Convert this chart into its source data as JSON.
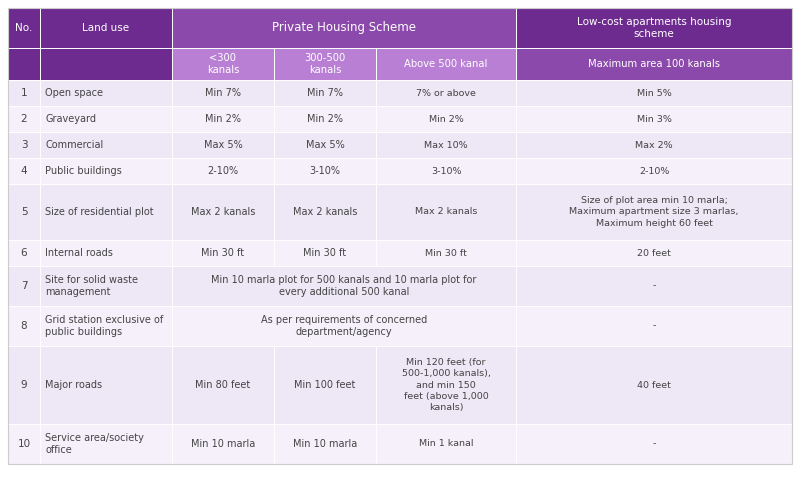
{
  "header_bg_dark": "#6d2b8f",
  "header_bg_medium": "#8b4aab",
  "header_bg_sub": "#b87fd4",
  "row_bg_odd": "#ede7f6",
  "row_bg_even": "#f5f0fa",
  "header_text_color": "#FFFFFF",
  "cell_text_color": "#444444",
  "border_color": "#FFFFFF",
  "rows": [
    [
      "1",
      "Open space",
      "Min 7%",
      "Min 7%",
      "7% or above",
      "Min 5%"
    ],
    [
      "2",
      "Graveyard",
      "Min 2%",
      "Min 2%",
      "Min 2%",
      "Min 3%"
    ],
    [
      "3",
      "Commercial",
      "Max 5%",
      "Max 5%",
      "Max 10%",
      "Max 2%"
    ],
    [
      "4",
      "Public buildings",
      "2-10%",
      "3-10%",
      "3-10%",
      "2-10%"
    ],
    [
      "5",
      "Size of residential plot",
      "Max 2 kanals",
      "Max 2 kanals",
      "Max 2 kanals",
      "Size of plot area min 10 marla;\nMaximum apartment size 3 marlas,\nMaximum height 60 feet"
    ],
    [
      "6",
      "Internal roads",
      "Min 30 ft",
      "Min 30 ft",
      "Min 30 ft",
      "20 feet"
    ],
    [
      "7",
      "Site for solid waste\nmanagement",
      "Min 10 marla plot for 500 kanals and 10 marla plot for\nevery additional 500 kanal",
      "",
      "",
      "-"
    ],
    [
      "8",
      "Grid station exclusive of\npublic buildings",
      "As per requirements of concerned\ndepartment/agency",
      "",
      "",
      "-"
    ],
    [
      "9",
      "Major roads",
      "Min 80 feet",
      "Min 100 feet",
      "Min 120 feet (for\n500-1,000 kanals),\nand min 150\nfeet (above 1,000\nkanals)",
      "40 feet"
    ],
    [
      "10",
      "Service area/society\noffice",
      "Min 10 marla",
      "Min 10 marla",
      "Min 1 kanal",
      "-"
    ]
  ]
}
